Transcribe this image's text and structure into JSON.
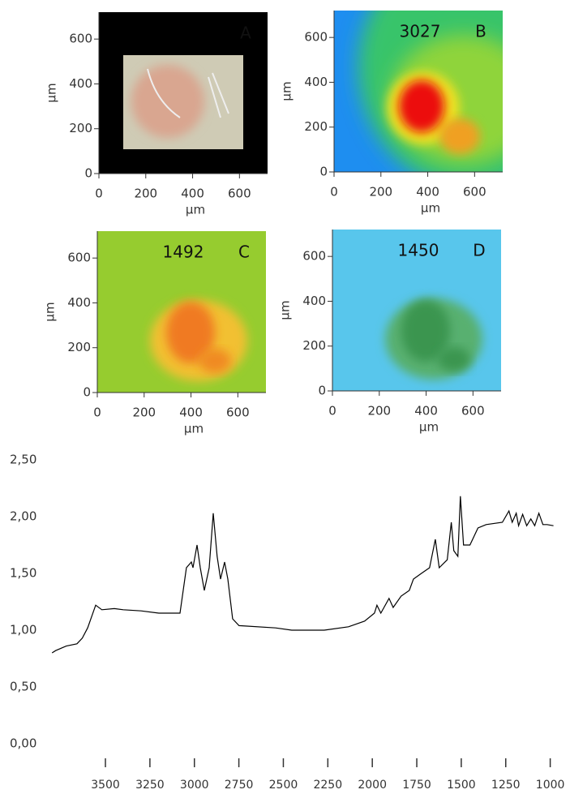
{
  "chart_data": [
    {
      "type": "image",
      "label": "A",
      "xlabel": "µm",
      "ylabel": "µm",
      "xlim": [
        0,
        720
      ],
      "ylim": [
        0,
        720
      ],
      "xticks": [
        0,
        200,
        400,
        600
      ],
      "yticks": [
        0,
        200,
        400,
        600
      ]
    },
    {
      "type": "image",
      "label": "B",
      "annotation": "3027",
      "xlabel": "µm",
      "ylabel": "µm",
      "xlim": [
        0,
        720
      ],
      "ylim": [
        0,
        720
      ],
      "xticks": [
        0,
        200,
        400,
        600
      ],
      "yticks": [
        0,
        200,
        400,
        600
      ]
    },
    {
      "type": "image",
      "label": "C",
      "annotation": "1492",
      "xlabel": "µm",
      "ylabel": "µm",
      "xlim": [
        0,
        720
      ],
      "ylim": [
        0,
        720
      ],
      "xticks": [
        0,
        200,
        400,
        600
      ],
      "yticks": [
        0,
        200,
        400,
        600
      ]
    },
    {
      "type": "image",
      "label": "D",
      "annotation": "1450",
      "xlabel": "µm",
      "ylabel": "µm",
      "xlim": [
        0,
        720
      ],
      "ylim": [
        0,
        720
      ],
      "xticks": [
        0,
        200,
        400,
        600
      ],
      "yticks": [
        0,
        200,
        400,
        600
      ]
    },
    {
      "type": "line",
      "color": "#000000",
      "x": [
        3800,
        3780,
        3720,
        3660,
        3630,
        3600,
        3555,
        3520,
        3450,
        3400,
        3300,
        3200,
        3081,
        3045,
        3017,
        3008,
        2985,
        2967,
        2944,
        2917,
        2894,
        2872,
        2853,
        2830,
        2812,
        2785,
        2749,
        2544,
        2453,
        2270,
        2134,
        2043,
        1988,
        1974,
        1952,
        1906,
        1883,
        1838,
        1792,
        1769,
        1724,
        1678,
        1646,
        1624,
        1579,
        1556,
        1542,
        1519,
        1505,
        1487,
        1451,
        1406,
        1360,
        1269,
        1232,
        1214,
        1191,
        1178,
        1155,
        1132,
        1109,
        1087,
        1064,
        1041,
        1018,
        982
      ],
      "values": [
        0.8,
        0.82,
        0.86,
        0.88,
        0.93,
        1.02,
        1.22,
        1.18,
        1.19,
        1.18,
        1.17,
        1.15,
        1.15,
        1.55,
        1.6,
        1.55,
        1.75,
        1.55,
        1.35,
        1.55,
        2.03,
        1.65,
        1.45,
        1.6,
        1.45,
        1.1,
        1.04,
        1.02,
        1.0,
        1.0,
        1.03,
        1.08,
        1.15,
        1.22,
        1.15,
        1.28,
        1.2,
        1.3,
        1.35,
        1.45,
        1.5,
        1.55,
        1.8,
        1.55,
        1.62,
        1.95,
        1.7,
        1.65,
        2.18,
        1.75,
        1.75,
        1.9,
        1.93,
        1.95,
        2.05,
        1.95,
        2.03,
        1.92,
        2.02,
        1.92,
        1.98,
        1.92,
        2.03,
        1.93,
        1.93,
        1.92
      ],
      "xlim": [
        3810,
        980
      ],
      "ylim": [
        0,
        2.5
      ],
      "xticks": [
        3500,
        3250,
        3000,
        2750,
        2500,
        2250,
        2000,
        1750,
        1500,
        1250,
        1000
      ],
      "yticks": [
        {
          "value": 0,
          "label": "0,00"
        },
        {
          "value": 0.5,
          "label": "0,50"
        },
        {
          "value": 1,
          "label": "1,00"
        },
        {
          "value": 1.5,
          "label": "1,50"
        },
        {
          "value": 2,
          "label": "2,00"
        },
        {
          "value": 2.5,
          "label": "2,50"
        }
      ]
    }
  ]
}
